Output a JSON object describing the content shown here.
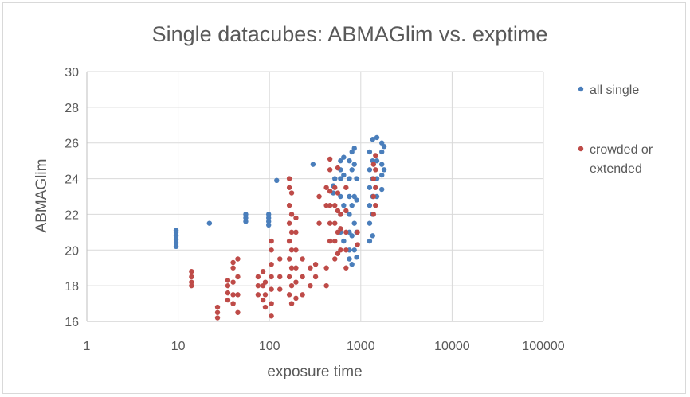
{
  "chart_data": {
    "type": "scatter",
    "title": "Single datacubes: ABMAGlim vs. exptime",
    "xlabel": "exposure time",
    "ylabel": "ABMAGlim",
    "x_scale": "log",
    "xlim": [
      1,
      100000
    ],
    "ylim": [
      16,
      30
    ],
    "x_ticks": [
      "1",
      "10",
      "100",
      "1000",
      "10000",
      "100000"
    ],
    "y_ticks": [
      "16",
      "18",
      "20",
      "22",
      "24",
      "26",
      "28",
      "30"
    ],
    "grid": true,
    "legend_position": "right",
    "series": [
      {
        "name": "all single",
        "color": "#4a7ebb",
        "points": [
          [
            9.5,
            20.2
          ],
          [
            9.5,
            20.4
          ],
          [
            9.5,
            20.6
          ],
          [
            9.5,
            20.8
          ],
          [
            9.5,
            21.0
          ],
          [
            9.5,
            21.1
          ],
          [
            22,
            21.5
          ],
          [
            55,
            21.6
          ],
          [
            55,
            21.8
          ],
          [
            55,
            22.0
          ],
          [
            98,
            21.4
          ],
          [
            98,
            21.6
          ],
          [
            98,
            21.8
          ],
          [
            98,
            22.0
          ],
          [
            120,
            23.9
          ],
          [
            300,
            24.8
          ],
          [
            500,
            23.2
          ],
          [
            500,
            23.6
          ],
          [
            520,
            24.0
          ],
          [
            600,
            21.0
          ],
          [
            600,
            22.0
          ],
          [
            600,
            23.0
          ],
          [
            600,
            24.0
          ],
          [
            600,
            24.5
          ],
          [
            600,
            25.0
          ],
          [
            650,
            20.5
          ],
          [
            650,
            22.5
          ],
          [
            650,
            24.2
          ],
          [
            650,
            25.2
          ],
          [
            750,
            19.5
          ],
          [
            750,
            20.0
          ],
          [
            750,
            21.0
          ],
          [
            750,
            22.0
          ],
          [
            750,
            23.0
          ],
          [
            750,
            24.0
          ],
          [
            750,
            25.0
          ],
          [
            800,
            19.2
          ],
          [
            800,
            20.8
          ],
          [
            800,
            22.5
          ],
          [
            800,
            24.5
          ],
          [
            800,
            25.5
          ],
          [
            850,
            20.0
          ],
          [
            850,
            21.5
          ],
          [
            850,
            23.0
          ],
          [
            850,
            24.8
          ],
          [
            850,
            25.7
          ],
          [
            900,
            19.6
          ],
          [
            900,
            21.0
          ],
          [
            900,
            22.8
          ],
          [
            900,
            24.0
          ],
          [
            1250,
            20.5
          ],
          [
            1250,
            21.5
          ],
          [
            1250,
            22.5
          ],
          [
            1250,
            23.5
          ],
          [
            1250,
            24.5
          ],
          [
            1250,
            25.5
          ],
          [
            1350,
            20.8
          ],
          [
            1350,
            22.0
          ],
          [
            1350,
            23.0
          ],
          [
            1350,
            24.0
          ],
          [
            1350,
            25.0
          ],
          [
            1350,
            26.2
          ],
          [
            1500,
            23.0
          ],
          [
            1500,
            24.0
          ],
          [
            1500,
            25.0
          ],
          [
            1500,
            26.3
          ],
          [
            1700,
            23.4
          ],
          [
            1700,
            24.2
          ],
          [
            1700,
            24.8
          ],
          [
            1700,
            25.5
          ],
          [
            1700,
            26.0
          ],
          [
            1800,
            24.5
          ],
          [
            1800,
            25.8
          ]
        ]
      },
      {
        "name": "crowded or extended",
        "color": "#be4b48",
        "points": [
          [
            14,
            18.0
          ],
          [
            14,
            18.2
          ],
          [
            14,
            18.5
          ],
          [
            14,
            18.8
          ],
          [
            27,
            16.2
          ],
          [
            27,
            16.5
          ],
          [
            27,
            16.8
          ],
          [
            35,
            17.2
          ],
          [
            35,
            17.6
          ],
          [
            35,
            18.0
          ],
          [
            35,
            18.3
          ],
          [
            40,
            17.0
          ],
          [
            40,
            17.5
          ],
          [
            40,
            18.2
          ],
          [
            40,
            19.0
          ],
          [
            40,
            19.3
          ],
          [
            45,
            16.5
          ],
          [
            45,
            17.5
          ],
          [
            45,
            18.5
          ],
          [
            45,
            19.5
          ],
          [
            75,
            17.5
          ],
          [
            75,
            18.0
          ],
          [
            75,
            18.5
          ],
          [
            85,
            17.2
          ],
          [
            85,
            18.0
          ],
          [
            85,
            18.8
          ],
          [
            90,
            16.8
          ],
          [
            90,
            17.5
          ],
          [
            90,
            18.2
          ],
          [
            105,
            16.3
          ],
          [
            105,
            17.0
          ],
          [
            105,
            17.8
          ],
          [
            105,
            18.5
          ],
          [
            105,
            19.2
          ],
          [
            105,
            20.0
          ],
          [
            105,
            20.5
          ],
          [
            130,
            17.8
          ],
          [
            130,
            18.5
          ],
          [
            130,
            19.5
          ],
          [
            165,
            17.5
          ],
          [
            165,
            18.5
          ],
          [
            165,
            19.5
          ],
          [
            165,
            20.5
          ],
          [
            165,
            21.5
          ],
          [
            165,
            22.5
          ],
          [
            165,
            23.5
          ],
          [
            165,
            24.0
          ],
          [
            175,
            17.0
          ],
          [
            175,
            18.0
          ],
          [
            175,
            19.0
          ],
          [
            175,
            20.0
          ],
          [
            175,
            21.0
          ],
          [
            175,
            22.0
          ],
          [
            175,
            23.2
          ],
          [
            195,
            17.3
          ],
          [
            195,
            18.2
          ],
          [
            195,
            19.0
          ],
          [
            195,
            20.0
          ],
          [
            195,
            21.0
          ],
          [
            195,
            21.8
          ],
          [
            230,
            17.5
          ],
          [
            230,
            18.5
          ],
          [
            230,
            19.5
          ],
          [
            280,
            18.0
          ],
          [
            280,
            19.0
          ],
          [
            320,
            18.5
          ],
          [
            320,
            19.2
          ],
          [
            350,
            21.5
          ],
          [
            350,
            23.0
          ],
          [
            420,
            18.0
          ],
          [
            420,
            19.0
          ],
          [
            420,
            22.5
          ],
          [
            420,
            23.5
          ],
          [
            460,
            20.5
          ],
          [
            460,
            21.5
          ],
          [
            460,
            22.5
          ],
          [
            460,
            23.3
          ],
          [
            460,
            24.5
          ],
          [
            460,
            25.1
          ],
          [
            520,
            19.5
          ],
          [
            520,
            20.5
          ],
          [
            520,
            21.5
          ],
          [
            520,
            22.5
          ],
          [
            520,
            23.5
          ],
          [
            560,
            19.8
          ],
          [
            560,
            21.0
          ],
          [
            560,
            22.2
          ],
          [
            560,
            23.2
          ],
          [
            560,
            24.6
          ],
          [
            600,
            20.0
          ],
          [
            600,
            21.2
          ],
          [
            600,
            22.0
          ],
          [
            690,
            19.0
          ],
          [
            690,
            20.0
          ],
          [
            690,
            21.0
          ],
          [
            690,
            22.2
          ],
          [
            690,
            23.5
          ],
          [
            920,
            20.3
          ],
          [
            920,
            21.0
          ],
          [
            1380,
            22.0
          ],
          [
            1380,
            23.0
          ],
          [
            1380,
            24.0
          ],
          [
            1380,
            24.8
          ],
          [
            1450,
            22.5
          ],
          [
            1450,
            23.5
          ],
          [
            1450,
            24.5
          ],
          [
            1450,
            25.3
          ]
        ]
      }
    ]
  }
}
